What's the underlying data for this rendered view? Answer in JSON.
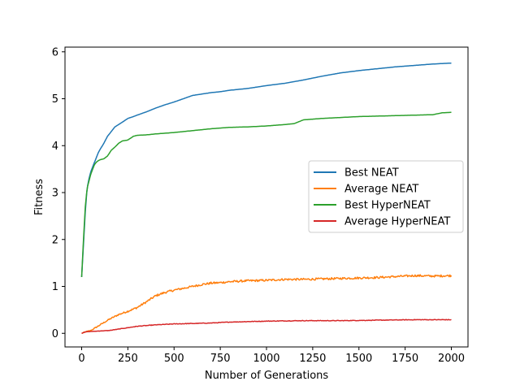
{
  "chart_data": {
    "type": "line",
    "title": "",
    "xlabel": "Number of Generations",
    "ylabel": "Fitness",
    "xlim": [
      -90,
      2090
    ],
    "ylim": [
      -0.29,
      6.1
    ],
    "xticks": [
      0,
      250,
      500,
      750,
      1000,
      1250,
      1500,
      1750,
      2000
    ],
    "yticks": [
      0,
      1,
      2,
      3,
      4,
      5,
      6
    ],
    "grid": false,
    "legend_position": "center-right",
    "series": [
      {
        "name": "Best NEAT",
        "color": "#1f77b4",
        "noise": 0,
        "x": [
          0,
          10,
          20,
          30,
          40,
          50,
          60,
          70,
          80,
          90,
          100,
          120,
          140,
          160,
          180,
          200,
          220,
          250,
          280,
          300,
          350,
          400,
          450,
          500,
          550,
          600,
          650,
          700,
          750,
          800,
          850,
          900,
          950,
          1000,
          1100,
          1200,
          1300,
          1400,
          1500,
          1600,
          1700,
          1800,
          1900,
          2000
        ],
        "y": [
          1.2,
          1.9,
          2.6,
          3.1,
          3.3,
          3.45,
          3.55,
          3.65,
          3.75,
          3.85,
          3.92,
          4.05,
          4.2,
          4.3,
          4.4,
          4.45,
          4.5,
          4.58,
          4.62,
          4.65,
          4.72,
          4.8,
          4.87,
          4.93,
          5.0,
          5.07,
          5.1,
          5.13,
          5.15,
          5.18,
          5.2,
          5.22,
          5.25,
          5.28,
          5.33,
          5.4,
          5.48,
          5.55,
          5.6,
          5.64,
          5.68,
          5.71,
          5.74,
          5.76
        ]
      },
      {
        "name": "Average NEAT",
        "color": "#ff7f0e",
        "noise": 0.022,
        "x": [
          0,
          20,
          50,
          100,
          150,
          200,
          250,
          300,
          350,
          400,
          450,
          500,
          550,
          600,
          650,
          700,
          750,
          800,
          900,
          1000,
          1100,
          1200,
          1300,
          1400,
          1500,
          1600,
          1700,
          1800,
          1900,
          2000
        ],
        "y": [
          0.0,
          0.03,
          0.06,
          0.18,
          0.3,
          0.4,
          0.47,
          0.55,
          0.67,
          0.8,
          0.87,
          0.92,
          0.96,
          1.0,
          1.04,
          1.07,
          1.08,
          1.1,
          1.12,
          1.13,
          1.15,
          1.15,
          1.16,
          1.17,
          1.18,
          1.19,
          1.21,
          1.23,
          1.22,
          1.23
        ]
      },
      {
        "name": "Best HyperNEAT",
        "color": "#2ca02c",
        "noise": 0,
        "x": [
          0,
          10,
          20,
          30,
          40,
          50,
          60,
          70,
          80,
          90,
          100,
          120,
          140,
          160,
          180,
          200,
          220,
          250,
          280,
          300,
          350,
          400,
          500,
          600,
          700,
          800,
          900,
          1000,
          1100,
          1150,
          1200,
          1300,
          1400,
          1500,
          1600,
          1700,
          1800,
          1900,
          1950,
          2000
        ],
        "y": [
          1.2,
          2.0,
          2.7,
          3.1,
          3.25,
          3.4,
          3.5,
          3.6,
          3.65,
          3.68,
          3.7,
          3.72,
          3.78,
          3.9,
          3.97,
          4.05,
          4.1,
          4.12,
          4.2,
          4.22,
          4.23,
          4.25,
          4.28,
          4.32,
          4.36,
          4.39,
          4.4,
          4.42,
          4.45,
          4.47,
          4.55,
          4.58,
          4.6,
          4.62,
          4.63,
          4.64,
          4.65,
          4.66,
          4.7,
          4.71
        ]
      },
      {
        "name": "Average HyperNEAT",
        "color": "#d62728",
        "noise": 0.006,
        "x": [
          0,
          20,
          50,
          100,
          150,
          200,
          250,
          300,
          400,
          500,
          600,
          700,
          800,
          900,
          1000,
          1200,
          1400,
          1600,
          1800,
          2000
        ],
        "y": [
          0.0,
          0.03,
          0.04,
          0.05,
          0.06,
          0.09,
          0.12,
          0.15,
          0.18,
          0.2,
          0.21,
          0.22,
          0.24,
          0.25,
          0.26,
          0.27,
          0.27,
          0.28,
          0.29,
          0.29
        ]
      }
    ]
  }
}
